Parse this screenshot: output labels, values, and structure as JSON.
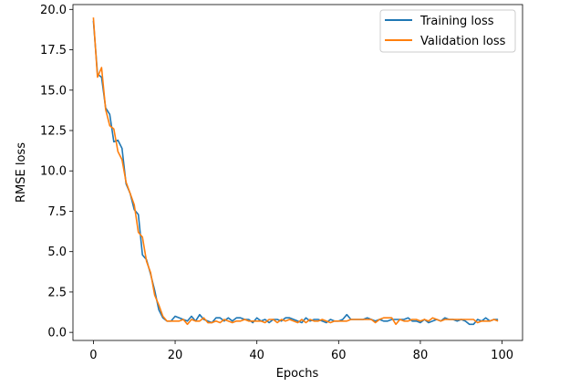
{
  "chart_data": {
    "type": "line",
    "title": "",
    "xlabel": "Epochs",
    "ylabel": "RMSE loss",
    "xlim": [
      -5,
      105
    ],
    "ylim": [
      -0.5,
      20.3
    ],
    "xticks": [
      0,
      20,
      40,
      60,
      80,
      100
    ],
    "yticks": [
      0.0,
      2.5,
      5.0,
      7.5,
      10.0,
      12.5,
      15.0,
      17.5,
      20.0
    ],
    "grid": false,
    "legend_position": "top-right",
    "x": [
      0,
      1,
      2,
      3,
      4,
      5,
      6,
      7,
      8,
      9,
      10,
      11,
      12,
      13,
      14,
      15,
      16,
      17,
      18,
      19,
      20,
      21,
      22,
      23,
      24,
      25,
      26,
      27,
      28,
      29,
      30,
      31,
      32,
      33,
      34,
      35,
      36,
      37,
      38,
      39,
      40,
      41,
      42,
      43,
      44,
      45,
      46,
      47,
      48,
      49,
      50,
      51,
      52,
      53,
      54,
      55,
      56,
      57,
      58,
      59,
      60,
      61,
      62,
      63,
      64,
      65,
      66,
      67,
      68,
      69,
      70,
      71,
      72,
      73,
      74,
      75,
      76,
      77,
      78,
      79,
      80,
      81,
      82,
      83,
      84,
      85,
      86,
      87,
      88,
      89,
      90,
      91,
      92,
      93,
      94,
      95,
      96,
      97,
      98,
      99
    ],
    "series": [
      {
        "name": "Training loss",
        "color": "#1f77b4",
        "values": [
          19.3,
          16.0,
          15.8,
          13.9,
          13.5,
          11.8,
          11.9,
          11.4,
          9.2,
          8.6,
          7.6,
          7.3,
          4.8,
          4.5,
          3.6,
          2.6,
          1.4,
          0.9,
          0.7,
          0.7,
          1.0,
          0.9,
          0.8,
          0.7,
          1.0,
          0.7,
          1.1,
          0.8,
          0.7,
          0.6,
          0.9,
          0.9,
          0.7,
          0.9,
          0.7,
          0.9,
          0.9,
          0.8,
          0.8,
          0.6,
          0.9,
          0.7,
          0.8,
          0.6,
          0.8,
          0.8,
          0.7,
          0.9,
          0.9,
          0.8,
          0.7,
          0.6,
          0.9,
          0.7,
          0.8,
          0.8,
          0.7,
          0.6,
          0.8,
          0.7,
          0.7,
          0.8,
          1.1,
          0.8,
          0.8,
          0.8,
          0.8,
          0.9,
          0.8,
          0.7,
          0.8,
          0.7,
          0.7,
          0.8,
          0.8,
          0.8,
          0.8,
          0.9,
          0.7,
          0.7,
          0.6,
          0.8,
          0.6,
          0.7,
          0.8,
          0.7,
          0.9,
          0.8,
          0.8,
          0.7,
          0.8,
          0.7,
          0.5,
          0.5,
          0.8,
          0.7,
          0.9,
          0.7,
          0.8,
          0.8
        ]
      },
      {
        "name": "Validation loss",
        "color": "#ff7f0e",
        "values": [
          19.5,
          15.8,
          16.4,
          13.8,
          12.8,
          12.6,
          11.2,
          10.7,
          9.3,
          8.6,
          7.9,
          6.2,
          5.9,
          4.4,
          3.7,
          2.3,
          1.7,
          1.0,
          0.7,
          0.7,
          0.7,
          0.7,
          0.8,
          0.5,
          0.8,
          0.7,
          0.7,
          0.9,
          0.6,
          0.6,
          0.7,
          0.6,
          0.8,
          0.7,
          0.6,
          0.7,
          0.7,
          0.8,
          0.7,
          0.7,
          0.7,
          0.7,
          0.6,
          0.8,
          0.8,
          0.6,
          0.8,
          0.7,
          0.8,
          0.7,
          0.6,
          0.8,
          0.6,
          0.8,
          0.7,
          0.7,
          0.8,
          0.7,
          0.6,
          0.7,
          0.7,
          0.7,
          0.7,
          0.8,
          0.8,
          0.8,
          0.8,
          0.8,
          0.8,
          0.6,
          0.8,
          0.9,
          0.9,
          0.9,
          0.5,
          0.8,
          0.7,
          0.7,
          0.8,
          0.8,
          0.7,
          0.8,
          0.7,
          0.9,
          0.8,
          0.7,
          0.8,
          0.8,
          0.8,
          0.8,
          0.8,
          0.8,
          0.8,
          0.8,
          0.6,
          0.7,
          0.7,
          0.7,
          0.8,
          0.7
        ]
      }
    ]
  }
}
